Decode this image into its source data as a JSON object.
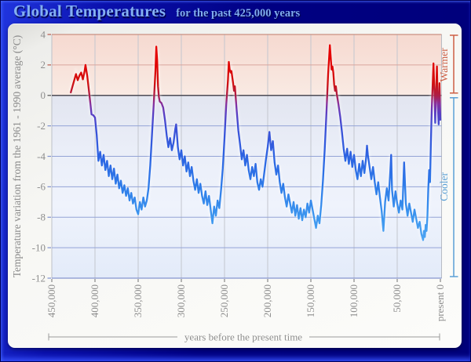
{
  "window": {
    "title": "Global Temperatures",
    "subtitle": "for the past 425,000 years"
  },
  "colors": {
    "frame_blue": "#000082",
    "title_text": "#83aff2",
    "warm_line_red": "#e10505",
    "cool_line_blue": "#3c96ef",
    "warmer_label": "#cd5f45",
    "cooler_label": "#5ba0d6",
    "warm_zone_pink": "#f6d9d0",
    "cool_zone_blue": "#eaeef8",
    "zero_line": "#4e4c54",
    "axis_text_gray": "#8e8e8e"
  },
  "y_axis": {
    "title": "Temperature variation from the 1961 - 1990 average (°C)",
    "ticks": [
      4,
      2,
      0,
      -2,
      -4,
      -6,
      -8,
      -10,
      -12
    ]
  },
  "x_axis": {
    "title": "years before the present time",
    "ticks": [
      {
        "label": "450,000",
        "value": 450000
      },
      {
        "label": "400,000",
        "value": 400000
      },
      {
        "label": "350,000",
        "value": 350000
      },
      {
        "label": "300,000",
        "value": 300000
      },
      {
        "label": "250,000",
        "value": 250000
      },
      {
        "label": "200,000",
        "value": 200000
      },
      {
        "label": "150,000",
        "value": 150000
      },
      {
        "label": "100,000",
        "value": 100000
      },
      {
        "label": "50,000",
        "value": 50000
      },
      {
        "label": "present 0",
        "value": 0
      }
    ]
  },
  "annotations": {
    "warmer": "Warmer",
    "cooler": "Cooler"
  },
  "chart_data": {
    "type": "line",
    "title": "Global Temperatures for the past 425,000 years",
    "xlabel": "years before the present time",
    "ylabel": "Temperature variation from the 1961 - 1990 average (°C)",
    "xlim": [
      450000,
      0
    ],
    "ylim": [
      -12,
      4
    ],
    "grid": true,
    "legend": false,
    "color_encoding": "line stroke colored by value: red above 0°C, purple near -1°C, blue below -2°C, light blue near -10°C",
    "series": [
      {
        "name": "temperature variation (°C) vs years before present",
        "points": [
          [
            428000,
            0.2
          ],
          [
            425000,
            0.8
          ],
          [
            422000,
            1.4
          ],
          [
            420000,
            1.0
          ],
          [
            418000,
            1.3
          ],
          [
            416000,
            1.5
          ],
          [
            414000,
            1.05
          ],
          [
            412000,
            1.6
          ],
          [
            411000,
            2.0
          ],
          [
            409000,
            1.3
          ],
          [
            407000,
            0.3
          ],
          [
            405000,
            -0.7
          ],
          [
            404000,
            -1.25
          ],
          [
            402000,
            -1.3
          ],
          [
            400000,
            -1.45
          ],
          [
            398000,
            -2.6
          ],
          [
            396000,
            -4.3
          ],
          [
            394000,
            -3.7
          ],
          [
            392000,
            -4.6
          ],
          [
            390000,
            -3.9
          ],
          [
            388000,
            -4.9
          ],
          [
            386000,
            -4.3
          ],
          [
            384000,
            -5.3
          ],
          [
            382000,
            -4.6
          ],
          [
            380000,
            -5.5
          ],
          [
            378000,
            -4.8
          ],
          [
            376000,
            -5.8
          ],
          [
            374000,
            -5.2
          ],
          [
            372000,
            -6.1
          ],
          [
            370000,
            -5.6
          ],
          [
            368000,
            -6.4
          ],
          [
            366000,
            -5.9
          ],
          [
            364000,
            -6.6
          ],
          [
            362000,
            -6.1
          ],
          [
            360000,
            -6.9
          ],
          [
            358000,
            -6.4
          ],
          [
            356000,
            -7.1
          ],
          [
            354000,
            -6.7
          ],
          [
            352000,
            -7.5
          ],
          [
            350000,
            -7.8
          ],
          [
            348000,
            -7.0
          ],
          [
            346000,
            -7.5
          ],
          [
            344000,
            -6.7
          ],
          [
            342000,
            -7.3
          ],
          [
            340000,
            -6.9
          ],
          [
            338000,
            -6.1
          ],
          [
            336000,
            -4.6
          ],
          [
            334000,
            -2.6
          ],
          [
            332000,
            -0.6
          ],
          [
            330000,
            1.6
          ],
          [
            329000,
            3.2
          ],
          [
            328000,
            2.3
          ],
          [
            327000,
            0.6
          ],
          [
            326000,
            -0.1
          ],
          [
            325000,
            -0.4
          ],
          [
            323000,
            -0.5
          ],
          [
            321000,
            -0.8
          ],
          [
            319000,
            -1.6
          ],
          [
            317000,
            -2.6
          ],
          [
            315000,
            -3.4
          ],
          [
            313000,
            -2.8
          ],
          [
            311000,
            -3.6
          ],
          [
            309000,
            -3.1
          ],
          [
            307000,
            -2.2
          ],
          [
            306000,
            -1.9
          ],
          [
            304000,
            -3.4
          ],
          [
            302000,
            -4.2
          ],
          [
            300000,
            -3.6
          ],
          [
            298000,
            -4.6
          ],
          [
            296000,
            -4.0
          ],
          [
            294000,
            -5.0
          ],
          [
            292000,
            -4.4
          ],
          [
            290000,
            -5.3
          ],
          [
            288000,
            -4.7
          ],
          [
            286000,
            -5.6
          ],
          [
            284000,
            -6.2
          ],
          [
            282000,
            -5.5
          ],
          [
            280000,
            -6.4
          ],
          [
            278000,
            -5.8
          ],
          [
            276000,
            -6.6
          ],
          [
            274000,
            -7.1
          ],
          [
            272000,
            -6.3
          ],
          [
            270000,
            -7.2
          ],
          [
            268000,
            -6.6
          ],
          [
            266000,
            -7.5
          ],
          [
            264000,
            -8.4
          ],
          [
            262000,
            -7.3
          ],
          [
            260000,
            -7.9
          ],
          [
            258000,
            -6.9
          ],
          [
            256000,
            -7.4
          ],
          [
            254000,
            -6.2
          ],
          [
            252000,
            -4.8
          ],
          [
            250000,
            -2.8
          ],
          [
            248000,
            -0.6
          ],
          [
            246000,
            1.0
          ],
          [
            245000,
            2.2
          ],
          [
            244000,
            1.7
          ],
          [
            243000,
            1.5
          ],
          [
            242000,
            1.6
          ],
          [
            240000,
            0.8
          ],
          [
            239000,
            0.3
          ],
          [
            238000,
            0.6
          ],
          [
            236000,
            -0.9
          ],
          [
            234000,
            -2.3
          ],
          [
            232000,
            -3.2
          ],
          [
            230000,
            -4.2
          ],
          [
            228000,
            -3.6
          ],
          [
            226000,
            -4.6
          ],
          [
            224000,
            -3.9
          ],
          [
            222000,
            -4.9
          ],
          [
            220000,
            -5.5
          ],
          [
            218000,
            -4.7
          ],
          [
            216000,
            -5.3
          ],
          [
            214000,
            -4.5
          ],
          [
            212000,
            -5.7
          ],
          [
            210000,
            -6.2
          ],
          [
            208000,
            -5.5
          ],
          [
            206000,
            -6.0
          ],
          [
            204000,
            -5.1
          ],
          [
            202000,
            -4.2
          ],
          [
            200000,
            -3.4
          ],
          [
            198000,
            -2.4
          ],
          [
            196000,
            -3.6
          ],
          [
            194000,
            -3.0
          ],
          [
            192000,
            -4.4
          ],
          [
            190000,
            -5.2
          ],
          [
            188000,
            -4.6
          ],
          [
            186000,
            -5.7
          ],
          [
            184000,
            -6.4
          ],
          [
            182000,
            -5.8
          ],
          [
            180000,
            -6.7
          ],
          [
            178000,
            -7.3
          ],
          [
            176000,
            -6.5
          ],
          [
            174000,
            -7.1
          ],
          [
            172000,
            -7.7
          ],
          [
            170000,
            -7.0
          ],
          [
            168000,
            -7.9
          ],
          [
            166000,
            -7.2
          ],
          [
            164000,
            -8.1
          ],
          [
            162000,
            -7.4
          ],
          [
            160000,
            -8.2
          ],
          [
            158000,
            -7.5
          ],
          [
            156000,
            -8.0
          ],
          [
            154000,
            -7.1
          ],
          [
            152000,
            -7.7
          ],
          [
            150000,
            -6.9
          ],
          [
            148000,
            -7.5
          ],
          [
            146000,
            -8.1
          ],
          [
            144000,
            -8.7
          ],
          [
            142000,
            -7.9
          ],
          [
            140000,
            -8.4
          ],
          [
            138000,
            -7.2
          ],
          [
            136000,
            -5.6
          ],
          [
            134000,
            -3.6
          ],
          [
            132000,
            -1.2
          ],
          [
            130000,
            1.4
          ],
          [
            128000,
            3.3
          ],
          [
            127000,
            2.5
          ],
          [
            126000,
            1.7
          ],
          [
            125000,
            1.9
          ],
          [
            124000,
            1.5
          ],
          [
            123000,
            0.7
          ],
          [
            122000,
            0.3
          ],
          [
            121000,
            0.6
          ],
          [
            120000,
            0.1
          ],
          [
            118000,
            -0.6
          ],
          [
            116000,
            -1.4
          ],
          [
            114000,
            -2.4
          ],
          [
            112000,
            -3.5
          ],
          [
            110000,
            -4.3
          ],
          [
            108000,
            -3.5
          ],
          [
            106000,
            -4.5
          ],
          [
            104000,
            -3.7
          ],
          [
            102000,
            -4.7
          ],
          [
            100000,
            -3.9
          ],
          [
            98000,
            -4.9
          ],
          [
            96000,
            -5.5
          ],
          [
            94000,
            -4.5
          ],
          [
            92000,
            -5.3
          ],
          [
            90000,
            -4.3
          ],
          [
            88000,
            -5.1
          ],
          [
            86000,
            -4.1
          ],
          [
            85000,
            -3.3
          ],
          [
            84000,
            -3.9
          ],
          [
            82000,
            -4.7
          ],
          [
            80000,
            -5.5
          ],
          [
            78000,
            -4.7
          ],
          [
            76000,
            -5.7
          ],
          [
            74000,
            -6.5
          ],
          [
            72000,
            -5.7
          ],
          [
            70000,
            -6.7
          ],
          [
            68000,
            -7.6
          ],
          [
            66000,
            -8.9
          ],
          [
            64000,
            -7.0
          ],
          [
            62000,
            -6.1
          ],
          [
            60000,
            -6.9
          ],
          [
            58000,
            -5.0
          ],
          [
            57000,
            -3.9
          ],
          [
            56000,
            -6.2
          ],
          [
            54000,
            -7.3
          ],
          [
            52000,
            -6.3
          ],
          [
            50000,
            -7.1
          ],
          [
            48000,
            -7.7
          ],
          [
            46000,
            -6.9
          ],
          [
            44000,
            -7.5
          ],
          [
            42000,
            -4.4
          ],
          [
            40000,
            -7.1
          ],
          [
            38000,
            -7.9
          ],
          [
            36000,
            -7.1
          ],
          [
            34000,
            -7.7
          ],
          [
            32000,
            -8.3
          ],
          [
            30000,
            -7.5
          ],
          [
            28000,
            -8.1
          ],
          [
            26000,
            -8.7
          ],
          [
            24000,
            -8.3
          ],
          [
            22000,
            -9.1
          ],
          [
            20000,
            -9.5
          ],
          [
            19000,
            -8.9
          ],
          [
            18000,
            -9.3
          ],
          [
            17000,
            -8.5
          ],
          [
            16000,
            -8.9
          ],
          [
            15000,
            -7.9
          ],
          [
            14000,
            -6.1
          ],
          [
            13000,
            -4.9
          ],
          [
            12000,
            -5.7
          ],
          [
            11000,
            -3.1
          ],
          [
            10000,
            -0.9
          ],
          [
            9000,
            0.6
          ],
          [
            8000,
            2.1
          ],
          [
            7000,
            0.4
          ],
          [
            6000,
            -1.8
          ],
          [
            5000,
            0.2
          ],
          [
            4000,
            1.9
          ],
          [
            3000,
            -0.6
          ],
          [
            2000,
            -1.9
          ],
          [
            1000,
            0.8
          ],
          [
            500,
            -0.4
          ],
          [
            0,
            -1.6
          ]
        ]
      }
    ]
  }
}
